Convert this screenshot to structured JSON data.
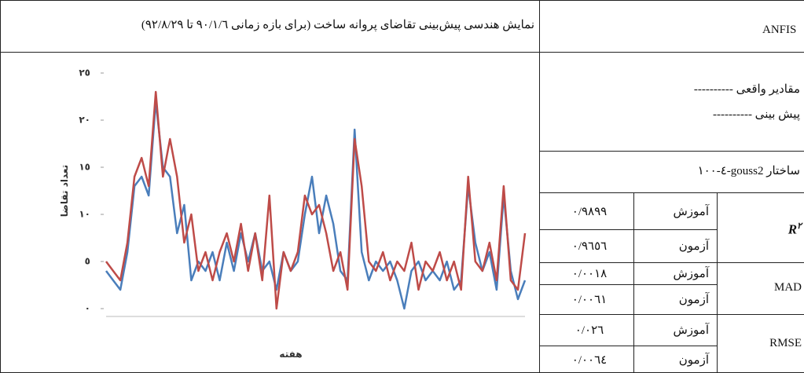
{
  "header": {
    "title": "نمایش هندسی پیش‌بینی تقاضای پروانه ساخت (برای بازه زمانی ٩٠/١/٦ تا ٩٢/٨/٢٩)",
    "method": "ANFIS"
  },
  "legend": [
    "مقادیر واقعی ----------",
    "پیش بینی ----------"
  ],
  "structure": "ساختار gouss2-٤-١٠٠",
  "chart_data": {
    "type": "line",
    "ylabel": "تعداد تقاضا",
    "xlabel": "هفته",
    "ylim": [
      0,
      25
    ],
    "yticks": [
      {
        "value": 0,
        "label": "٠"
      },
      {
        "value": 5,
        "label": "٥"
      },
      {
        "value": 10,
        "label": "١٠"
      },
      {
        "value": 15,
        "label": "١٥"
      },
      {
        "value": 20,
        "label": "٢٠"
      },
      {
        "value": 25,
        "label": "٢٥"
      }
    ],
    "series": [
      {
        "color": "#4a7ebb",
        "values": [
          4,
          3,
          2,
          6,
          13,
          14,
          12,
          22,
          15,
          14,
          8,
          11,
          3,
          5,
          4,
          6,
          3,
          7,
          4,
          8,
          5,
          8,
          4,
          5,
          2,
          6,
          4,
          5,
          10,
          14,
          8,
          12,
          9,
          4,
          3,
          19,
          6,
          3,
          5,
          4,
          5,
          3,
          0,
          4,
          5,
          3,
          4,
          3,
          5,
          2,
          3,
          13,
          7,
          4,
          6,
          2,
          12,
          4,
          1,
          3
        ]
      },
      {
        "color": "#be4b48",
        "values": [
          5,
          4,
          3,
          7,
          14,
          16,
          13,
          23,
          14,
          18,
          14,
          7,
          10,
          4,
          6,
          3,
          6,
          8,
          5,
          9,
          4,
          8,
          3,
          12,
          0,
          6,
          4,
          6,
          12,
          10,
          11,
          8,
          4,
          6,
          2,
          18,
          13,
          5,
          4,
          6,
          3,
          5,
          4,
          7,
          2,
          5,
          4,
          6,
          3,
          5,
          2,
          14,
          5,
          4,
          7,
          3,
          13,
          3,
          2,
          8
        ]
      }
    ]
  },
  "table": {
    "rows": [
      {
        "metric": "R",
        "sup": "٢",
        "items": [
          [
            "آموزش",
            "٠/٩٨٩٩"
          ],
          [
            "آزمون",
            "٠/٩٦٥٦"
          ]
        ]
      },
      {
        "metric": "MAD",
        "items": [
          [
            "آموزش",
            "٠/٠٠١٨"
          ],
          [
            "آزمون",
            "٠/٠٠٦١"
          ]
        ]
      },
      {
        "metric": "RMSE",
        "items": [
          [
            "آموزش",
            "٠/٠٢٦"
          ],
          [
            "آزمون",
            "٠/٠٠٦٤"
          ]
        ]
      }
    ]
  }
}
